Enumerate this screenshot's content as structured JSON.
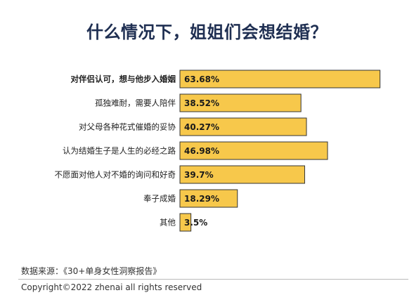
{
  "title": "什么情况下，姐姐们会想结婚？",
  "chart_data": {
    "type": "bar",
    "orientation": "horizontal",
    "title": "什么情况下，姐姐们会想结婚？",
    "categories": [
      "对伴侣认可，想与他步入婚姻",
      "孤独难耐，需要人陪伴",
      "对父母各种花式催婚的妥协",
      "认为结婚生子是人生的必经之路",
      "不愿面对他人对不婚的询问和好奇",
      "奉子成婚",
      "其他"
    ],
    "values": [
      63.68,
      38.52,
      40.27,
      46.98,
      39.7,
      18.29,
      3.5
    ],
    "value_labels": [
      "63.68%",
      "38.52%",
      "40.27%",
      "46.98%",
      "39.7%",
      "18.29%",
      "3.5%"
    ],
    "bold_categories": [
      0
    ],
    "xlim": [
      0,
      100
    ],
    "grid": false,
    "bar_color": "#f7c84b",
    "bar_stroke": "#333333",
    "title_color": "#1f2f52"
  },
  "footer": {
    "source": "数据来源：《30+单身女性洞察报告》",
    "copyright": "Copyright©2022  zhenai  all rights reserved"
  }
}
